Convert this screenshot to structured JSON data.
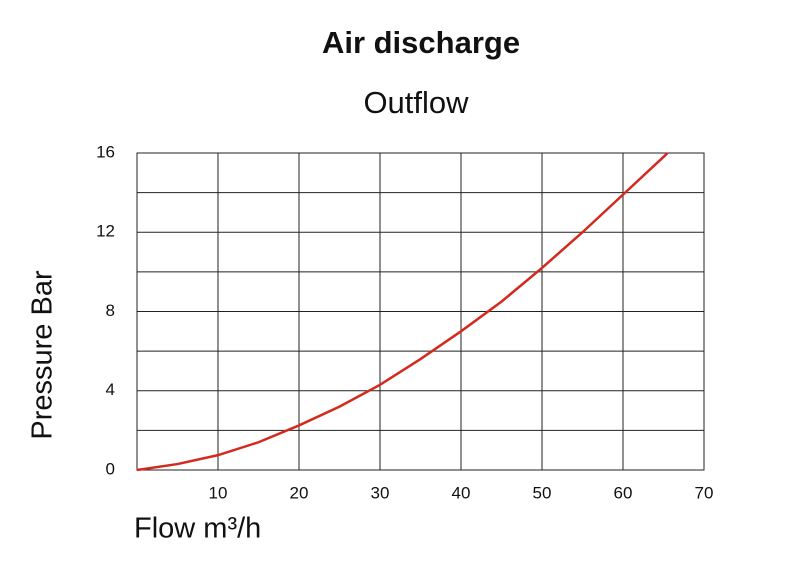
{
  "chart_data": {
    "type": "line",
    "title": "Air discharge",
    "subtitle": "Outflow",
    "x_label": "Flow m³/h",
    "y_label": "Pressure Bar",
    "x": [
      0,
      5,
      10,
      15,
      20,
      25,
      30,
      35,
      40,
      45,
      50,
      55,
      60,
      65,
      65.5
    ],
    "series": [
      {
        "color": "#d42a1e",
        "values": [
          0,
          0.3,
          0.75,
          1.4,
          2.25,
          3.2,
          4.3,
          5.6,
          7.0,
          8.5,
          10.2,
          12.0,
          13.9,
          15.8,
          16
        ]
      }
    ],
    "xlim": [
      0,
      70
    ],
    "ylim": [
      0,
      16
    ],
    "xticks": [
      10,
      20,
      30,
      40,
      50,
      60,
      70
    ],
    "yticks": [
      0,
      4,
      8,
      12,
      16
    ],
    "y_minor_grid": [
      2,
      6,
      10,
      14
    ],
    "grid": true
  }
}
